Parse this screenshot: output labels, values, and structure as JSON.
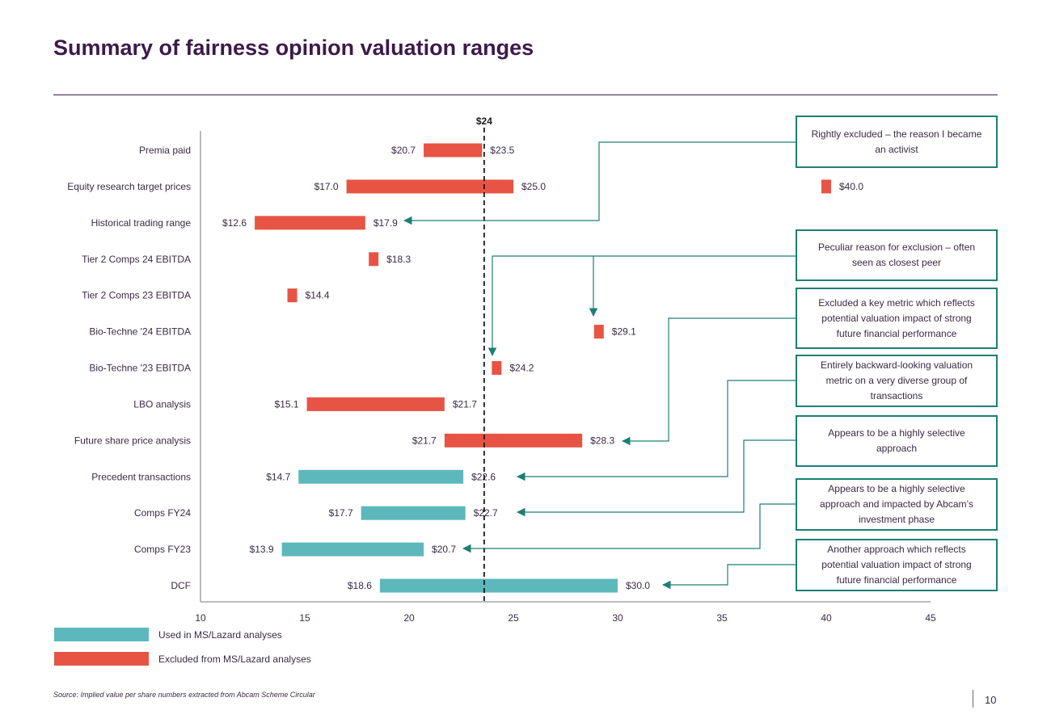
{
  "page": {
    "title": "Summary of fairness opinion valuation ranges",
    "source": "Source: Implied value per share numbers extracted from Abcam Scheme Circular",
    "page_number": "10"
  },
  "colors": {
    "used": "#5cb8bb",
    "excluded": "#e85444",
    "annotation": "#1d7f74",
    "title": "#3d1a4a"
  },
  "legend": [
    {
      "label": "Used in MS/Lazard analyses",
      "color": "#5cb8bb"
    },
    {
      "label": "Excluded from MS/Lazard analyses",
      "color": "#e85444"
    }
  ],
  "annotations": [
    "Rightly excluded – the reason I became an activist",
    "Peculiar reason for exclusion – often seen as closest peer",
    "Excluded a key metric which reflects potential valuation impact of strong future financial performance",
    "Entirely backward-looking valuation metric on a very diverse group of transactions",
    "Appears to be a highly selective approach",
    "Appears to be a highly selective approach and impacted by Abcam’s investment phase",
    "Another approach which reflects potential valuation impact of strong future financial performance"
  ],
  "chart_data": {
    "type": "bar",
    "orientation": "horizontal-floating-range",
    "xlim": [
      10,
      45
    ],
    "xticks": [
      10,
      15,
      20,
      25,
      30,
      35,
      40,
      45
    ],
    "reference_line": {
      "value": 23.6,
      "label": "$24"
    },
    "categories": [
      {
        "name": "Premia paid",
        "low": 20.7,
        "high": 23.5,
        "low_label": "$20.7",
        "high_label": "$23.5",
        "status": "excluded"
      },
      {
        "name": "Equity research target prices",
        "low": 17.0,
        "high": 25.0,
        "low_label": "$17.0",
        "high_label": "$25.0",
        "status": "excluded",
        "extra_point": {
          "value": 40.0,
          "label": "$40.0"
        }
      },
      {
        "name": "Historical trading range",
        "low": 12.6,
        "high": 17.9,
        "low_label": "$12.6",
        "high_label": "$17.9",
        "status": "excluded"
      },
      {
        "name": "Tier 2 Comps 24 EBITDA",
        "low": 18.3,
        "high": 18.3,
        "low_label": "",
        "high_label": "$18.3",
        "status": "excluded"
      },
      {
        "name": "Tier 2 Comps 23 EBITDA",
        "low": 14.4,
        "high": 14.4,
        "low_label": "",
        "high_label": "$14.4",
        "status": "excluded"
      },
      {
        "name": "Bio-Techne '24 EBITDA",
        "low": 29.1,
        "high": 29.1,
        "low_label": "",
        "high_label": "$29.1",
        "status": "excluded"
      },
      {
        "name": "Bio-Techne '23 EBITDA",
        "low": 24.2,
        "high": 24.2,
        "low_label": "",
        "high_label": "$24.2",
        "status": "excluded"
      },
      {
        "name": "LBO analysis",
        "low": 15.1,
        "high": 21.7,
        "low_label": "$15.1",
        "high_label": "$21.7",
        "status": "excluded"
      },
      {
        "name": "Future share price analysis",
        "low": 21.7,
        "high": 28.3,
        "low_label": "$21.7",
        "high_label": "$28.3",
        "status": "excluded"
      },
      {
        "name": "Precedent transactions",
        "low": 14.7,
        "high": 22.6,
        "low_label": "$14.7",
        "high_label": "$22.6",
        "status": "used"
      },
      {
        "name": "Comps FY24",
        "low": 17.7,
        "high": 22.7,
        "low_label": "$17.7",
        "high_label": "$22.7",
        "status": "used"
      },
      {
        "name": "Comps FY23",
        "low": 13.9,
        "high": 20.7,
        "low_label": "$13.9",
        "high_label": "$20.7",
        "status": "used"
      },
      {
        "name": "DCF",
        "low": 18.6,
        "high": 30.0,
        "low_label": "$18.6",
        "high_label": "$30.0",
        "status": "used"
      }
    ]
  }
}
